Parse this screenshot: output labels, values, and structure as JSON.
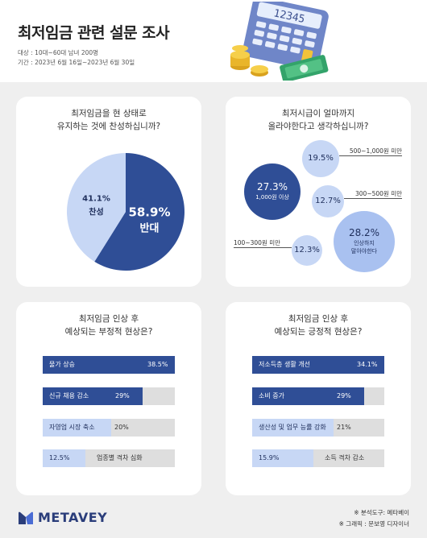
{
  "header": {
    "title": "최저임금 관련 설문 조사",
    "target": "대상 : 10대~60대 남녀 200명",
    "period": "기간 : 2023년 6월 16일~2023년 6월 30일"
  },
  "colors": {
    "dark": "#2f4e96",
    "light": "#c7d7f5",
    "grey": "#dedede"
  },
  "chart_data": [
    {
      "type": "pie",
      "title": "최저임금을 현 상태로\n유지하는 것에 찬성하십니까?",
      "slices": [
        {
          "label": "반대",
          "value": 58.9,
          "display": "58.9%"
        },
        {
          "label": "찬성",
          "value": 41.1,
          "display": "41.1%"
        }
      ]
    },
    {
      "type": "bubble",
      "title": "최저시급이 얼마까지\n올라야한다고 생각하십니까?",
      "items": [
        {
          "label": "1,000원 이상",
          "value": 27.3,
          "display": "27.3%"
        },
        {
          "label": "500~1,000원 미만",
          "value": 19.5,
          "display": "19.5%"
        },
        {
          "label": "300~500원 미만",
          "value": 12.7,
          "display": "12.7%"
        },
        {
          "label": "100~300원 미만",
          "value": 12.3,
          "display": "12.3%"
        },
        {
          "label": "인상하지\n말아야한다",
          "value": 28.2,
          "display": "28.2%"
        }
      ]
    },
    {
      "type": "bar",
      "title": "최저임금 인상 후\n예상되는 부정적 현상은?",
      "categories": [
        "물가 상승",
        "신규 채용 감소",
        "자영업 시장 축소",
        "업종별 격차 심화"
      ],
      "values": [
        38.5,
        29,
        20,
        12.5
      ],
      "displays": [
        "38.5%",
        "29%",
        "20%",
        "12.5%"
      ],
      "max": 38.5
    },
    {
      "type": "bar",
      "title": "최저임금 인상 후\n예상되는 긍정적 현상은?",
      "categories": [
        "저소득층 생활 개선",
        "소비 증가",
        "생산성 및 업무 능률 강화",
        "소득 격차 감소"
      ],
      "values": [
        34.1,
        29,
        21,
        15.9
      ],
      "displays": [
        "34.1%",
        "29%",
        "21%",
        "15.9%"
      ],
      "max": 34.1
    }
  ],
  "footer": {
    "logo": "METAVEY",
    "credit1": "※ 분석도구: 메타베이",
    "credit2": "※ 그래픽 : 문보영 디자이너"
  },
  "illustration": {
    "calculator_display": "12345"
  }
}
